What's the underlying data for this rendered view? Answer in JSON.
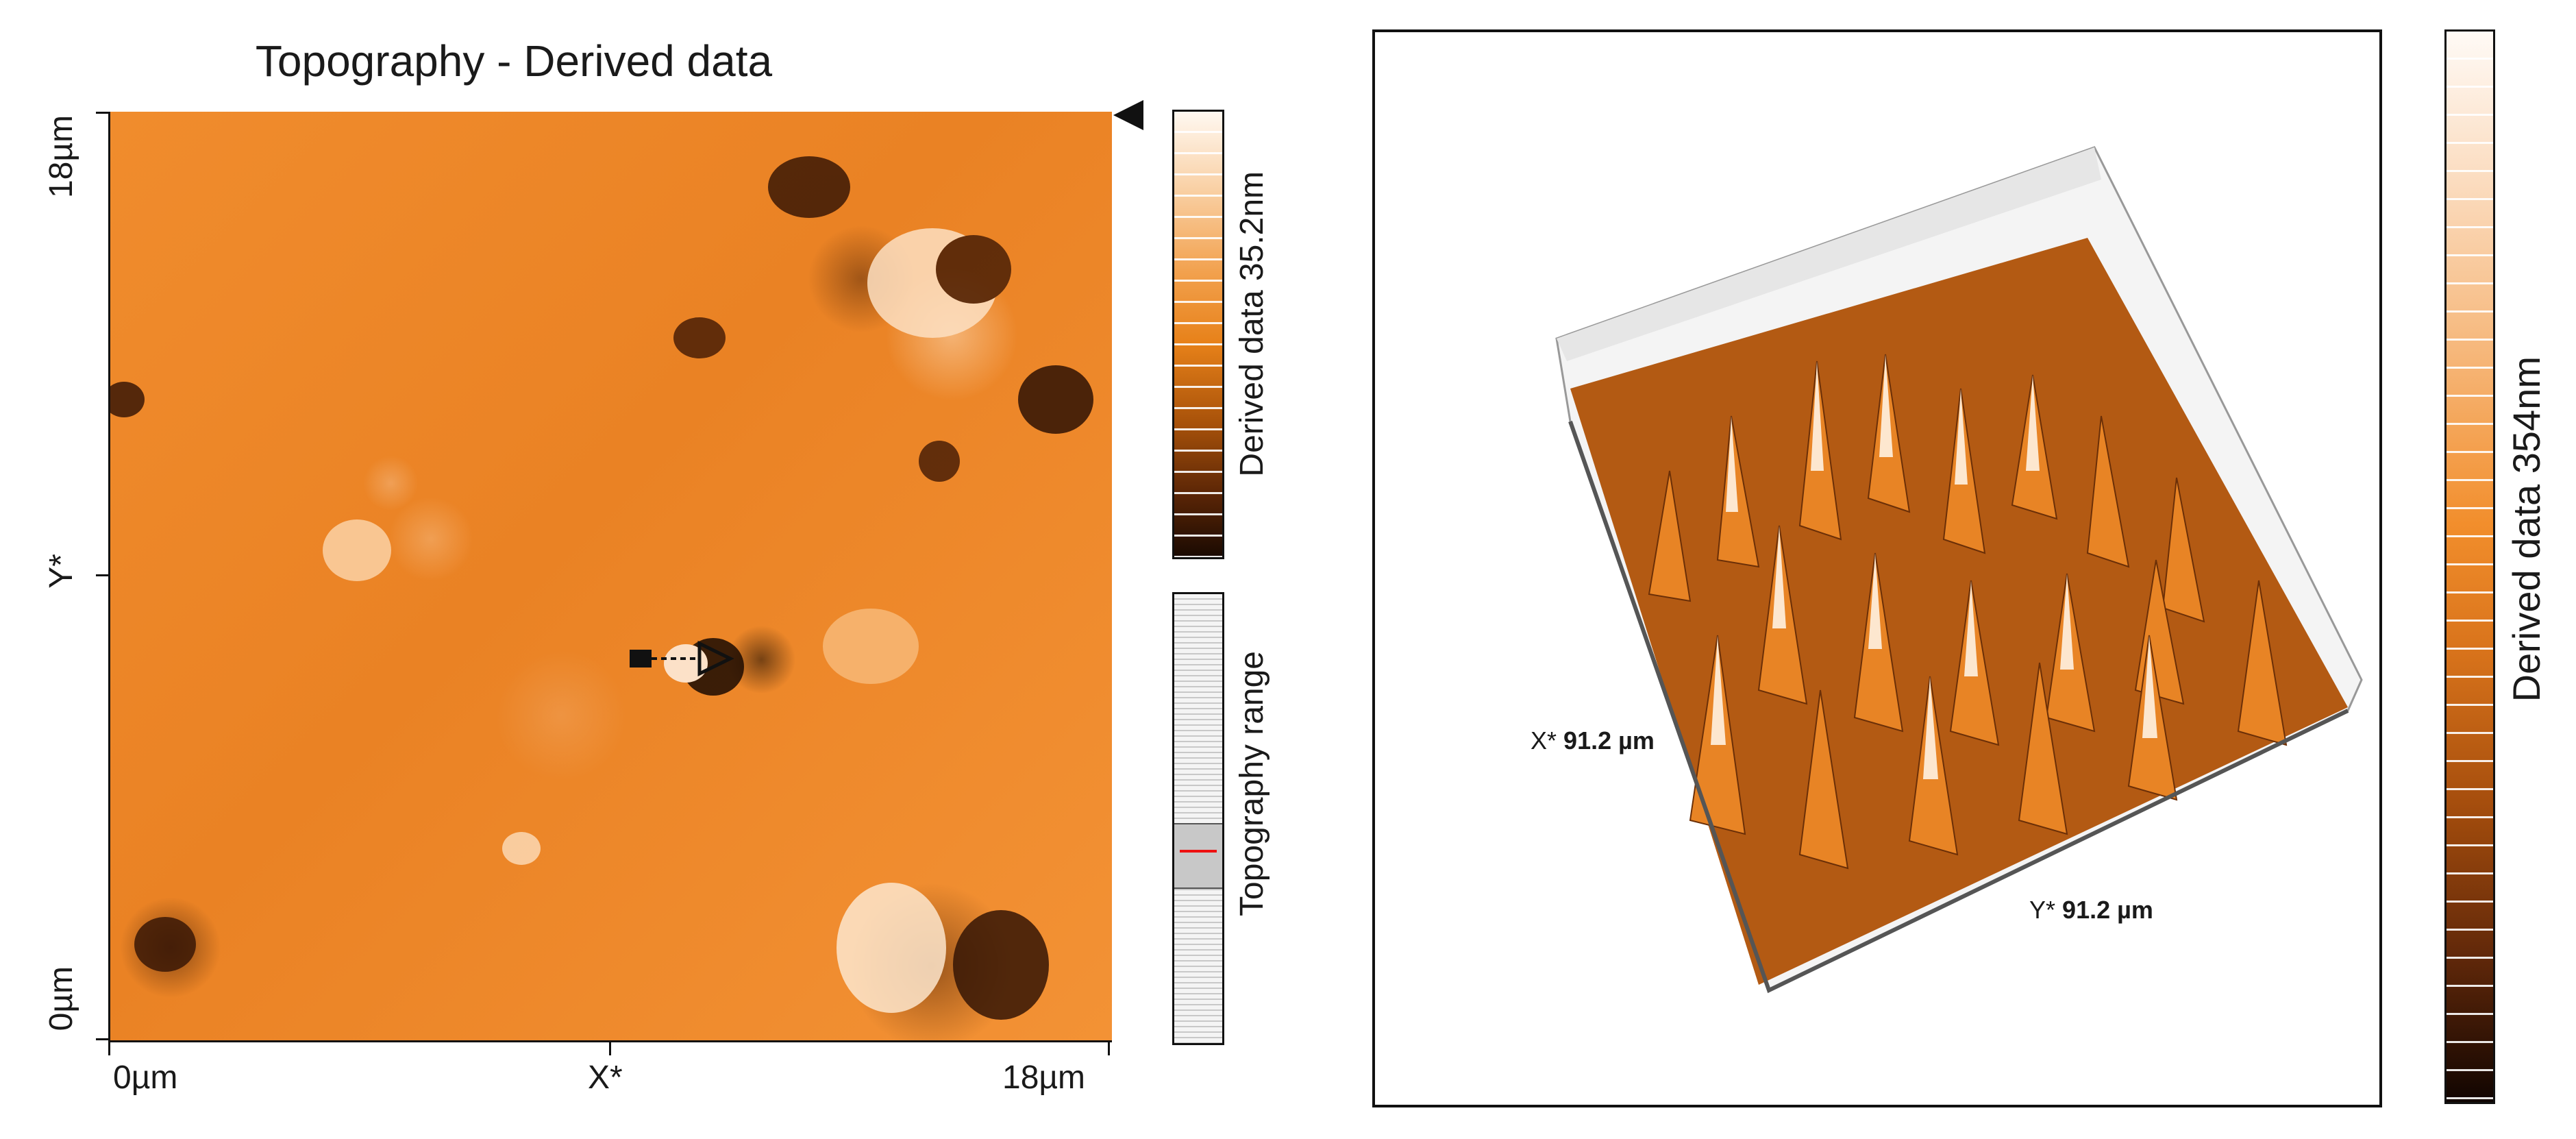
{
  "left_panel": {
    "title": "Topography - Derived data",
    "y_axis": {
      "label": "Y*",
      "top": "18µm",
      "bottom": "0µm"
    },
    "x_axis": {
      "label": "X*",
      "left": "0µm",
      "right": "18µm"
    },
    "colorbar_label": "Derived data 35.2nm",
    "range_label": "Topography range",
    "palette": [
      "#fff8f1",
      "#f2a14e",
      "#e78119",
      "#a8520a",
      "#1a0a02"
    ]
  },
  "right_panel": {
    "x_axis": {
      "name": "X*",
      "value": "91.2 µm"
    },
    "y_axis": {
      "name": "Y*",
      "value": "91.2 µm"
    },
    "colorbar_label": "Derived data 354nm"
  }
}
